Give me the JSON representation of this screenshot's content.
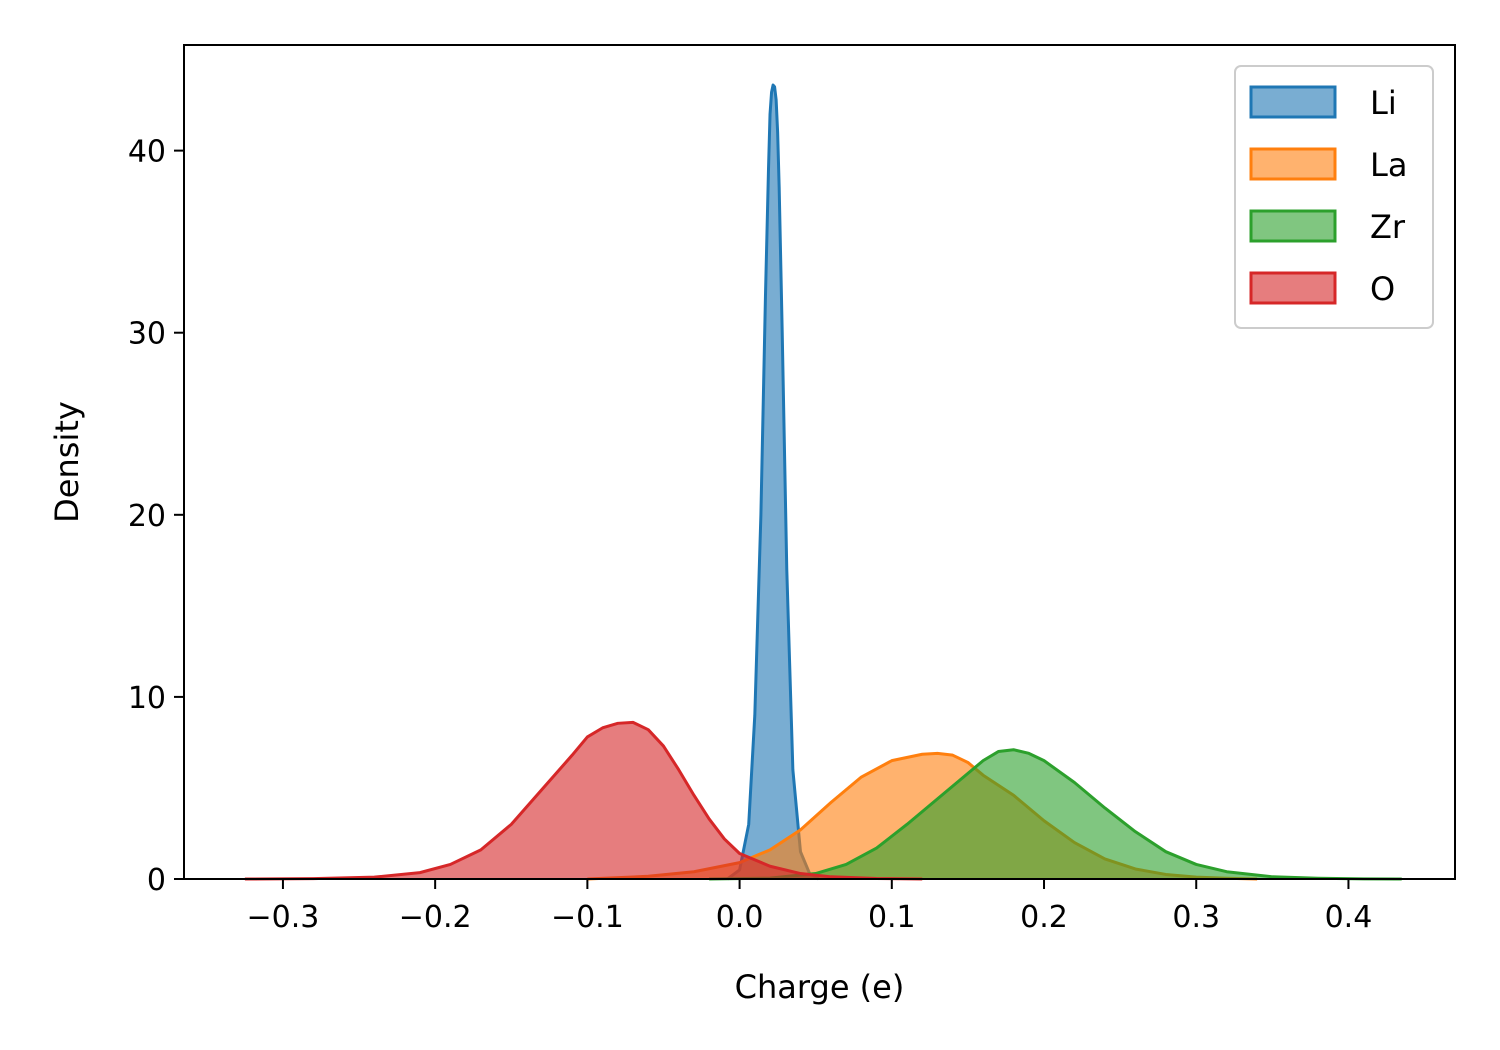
{
  "chart_data": {
    "type": "area",
    "title": "",
    "xlabel": "Charge (e)",
    "ylabel": "Density",
    "xlim": [
      -0.365,
      0.47
    ],
    "ylim": [
      0,
      45.8
    ],
    "xticks": [
      -0.3,
      -0.2,
      -0.1,
      0.0,
      0.1,
      0.2,
      0.3,
      0.4
    ],
    "xtick_labels": [
      "−0.3",
      "−0.2",
      "−0.1",
      "0.0",
      "0.1",
      "0.2",
      "0.3",
      "0.4"
    ],
    "yticks": [
      0,
      10,
      20,
      30,
      40
    ],
    "ytick_labels": [
      "0",
      "10",
      "20",
      "30",
      "40"
    ],
    "grid": false,
    "legend_position": "top-right",
    "series": [
      {
        "name": "Li",
        "color": "#1f77b4",
        "fill_opacity": 0.6,
        "x": [
          -0.008,
          0.0,
          0.006,
          0.01,
          0.014,
          0.017,
          0.019,
          0.02,
          0.021,
          0.022,
          0.023,
          0.024,
          0.025,
          0.026,
          0.028,
          0.031,
          0.035,
          0.04,
          0.046,
          0.052
        ],
        "y": [
          0,
          0.5,
          3,
          9,
          20,
          32,
          39,
          42,
          43.2,
          43.6,
          43.5,
          42.8,
          41,
          38,
          30,
          17,
          6,
          1.5,
          0.3,
          0
        ]
      },
      {
        "name": "La",
        "color": "#ff7f0e",
        "fill_opacity": 0.6,
        "x": [
          -0.1,
          -0.06,
          -0.03,
          0.0,
          0.02,
          0.04,
          0.06,
          0.08,
          0.1,
          0.12,
          0.13,
          0.14,
          0.15,
          0.16,
          0.18,
          0.2,
          0.22,
          0.24,
          0.26,
          0.28,
          0.3,
          0.32,
          0.34
        ],
        "y": [
          0,
          0.15,
          0.4,
          0.9,
          1.6,
          2.7,
          4.2,
          5.6,
          6.5,
          6.85,
          6.9,
          6.8,
          6.4,
          5.7,
          4.6,
          3.2,
          2.0,
          1.1,
          0.55,
          0.25,
          0.1,
          0.04,
          0
        ]
      },
      {
        "name": "Zr",
        "color": "#2ca02c",
        "fill_opacity": 0.6,
        "x": [
          -0.02,
          0.02,
          0.05,
          0.07,
          0.09,
          0.11,
          0.13,
          0.15,
          0.16,
          0.17,
          0.18,
          0.19,
          0.2,
          0.22,
          0.24,
          0.26,
          0.28,
          0.3,
          0.32,
          0.35,
          0.38,
          0.41,
          0.435
        ],
        "y": [
          0,
          0.05,
          0.3,
          0.8,
          1.7,
          3.0,
          4.4,
          5.8,
          6.5,
          7.0,
          7.1,
          6.9,
          6.5,
          5.3,
          3.9,
          2.6,
          1.5,
          0.8,
          0.4,
          0.12,
          0.04,
          0.01,
          0
        ]
      },
      {
        "name": "O",
        "color": "#d62728",
        "fill_opacity": 0.6,
        "x": [
          -0.325,
          -0.28,
          -0.24,
          -0.21,
          -0.19,
          -0.17,
          -0.15,
          -0.13,
          -0.11,
          -0.1,
          -0.09,
          -0.08,
          -0.07,
          -0.06,
          -0.05,
          -0.04,
          -0.03,
          -0.02,
          -0.01,
          0.0,
          0.02,
          0.04,
          0.06,
          0.09,
          0.12
        ],
        "y": [
          0,
          0.02,
          0.1,
          0.35,
          0.8,
          1.6,
          3.0,
          4.9,
          6.8,
          7.8,
          8.3,
          8.55,
          8.6,
          8.2,
          7.3,
          6.0,
          4.6,
          3.3,
          2.2,
          1.4,
          0.7,
          0.3,
          0.12,
          0.03,
          0
        ]
      }
    ]
  }
}
